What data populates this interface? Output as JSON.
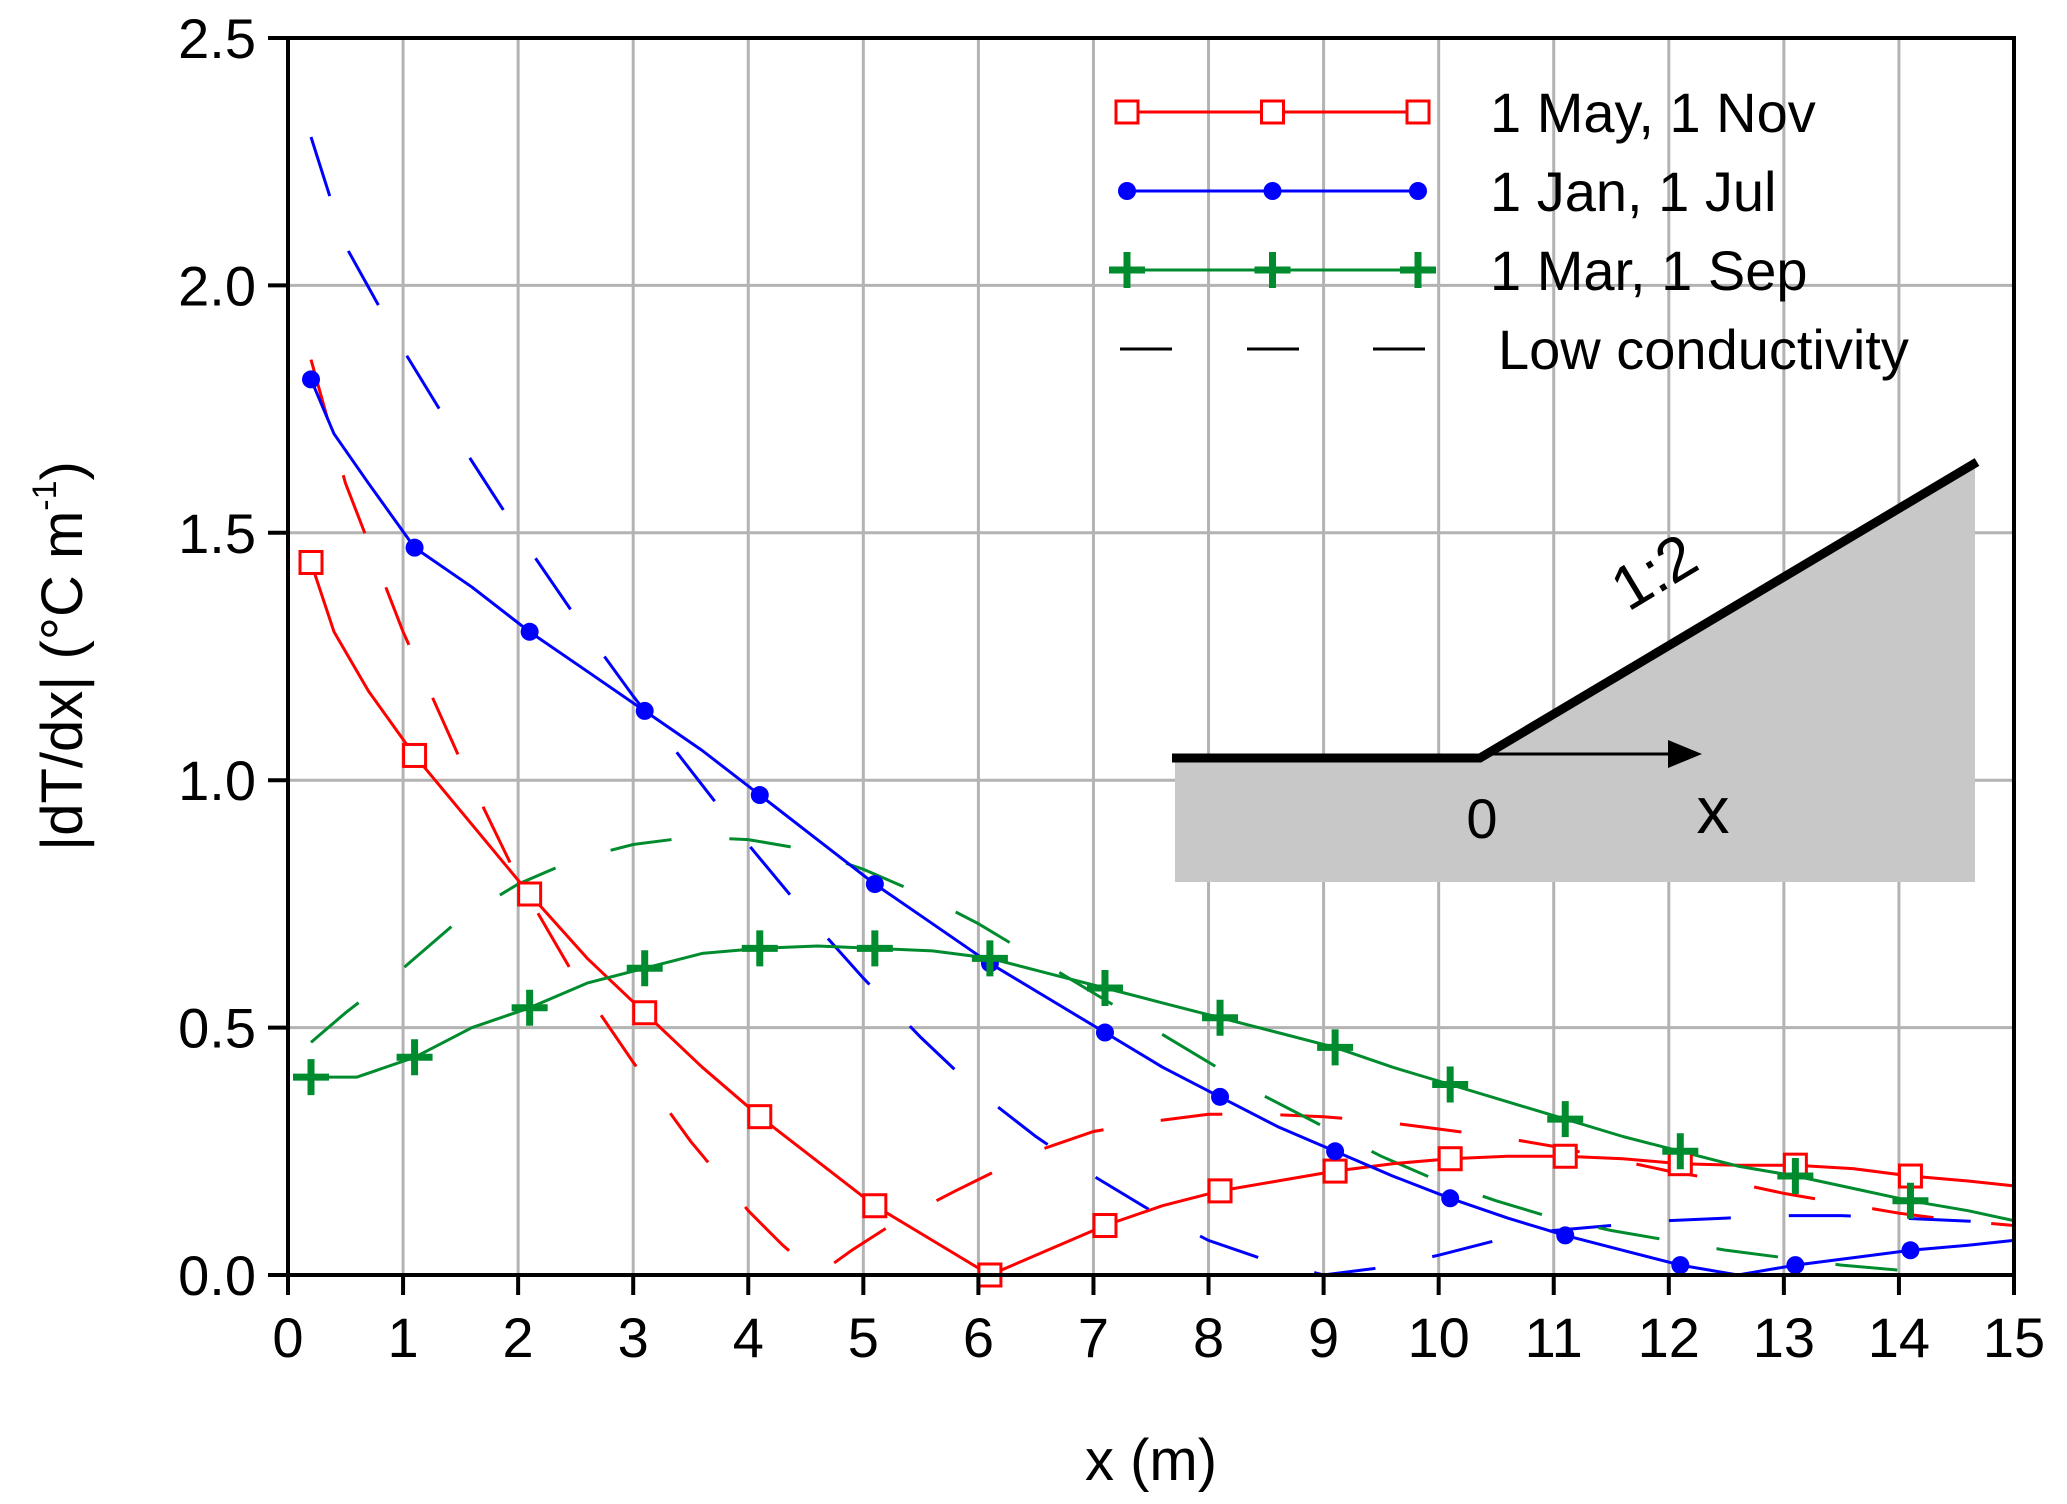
{
  "chart_data": {
    "type": "line",
    "xlabel": "x (m)",
    "ylabel_main": "|dT/dx| (°C m",
    "ylabel_sup": "-1",
    "ylabel_close": ")",
    "xlim": [
      0,
      15
    ],
    "ylim": [
      0,
      2.5
    ],
    "xticks": [
      0,
      1,
      2,
      3,
      4,
      5,
      6,
      7,
      8,
      9,
      10,
      11,
      12,
      13,
      14,
      15
    ],
    "yticks": [
      0,
      0.5,
      1.0,
      1.5,
      2.0,
      2.5
    ],
    "ytick_labels": [
      "0.0",
      "0.5",
      "1.0",
      "1.5",
      "2.0",
      "2.5"
    ],
    "grid": true,
    "legend_position": "top-right",
    "series": [
      {
        "name": "1 May, 1 Nov",
        "color": "#ff0000",
        "marker": "open-square",
        "style": "solid",
        "x": [
          0.2,
          0.4,
          0.7,
          1.1,
          1.6,
          2.1,
          2.6,
          3.1,
          3.6,
          4.1,
          4.6,
          5.1,
          5.6,
          6.1,
          6.6,
          7.1,
          7.6,
          8.1,
          8.6,
          9.1,
          9.6,
          10.1,
          10.6,
          11.1,
          11.6,
          12.1,
          12.6,
          13.1,
          13.6,
          14.1,
          14.6,
          15.0
        ],
        "y": [
          1.44,
          1.3,
          1.18,
          1.05,
          0.91,
          0.77,
          0.64,
          0.53,
          0.42,
          0.32,
          0.23,
          0.14,
          0.07,
          0.0,
          0.05,
          0.1,
          0.14,
          0.17,
          0.19,
          0.21,
          0.225,
          0.235,
          0.24,
          0.24,
          0.235,
          0.225,
          0.222,
          0.222,
          0.215,
          0.2,
          0.19,
          0.18
        ],
        "marker_x": [
          0.2,
          1.1,
          2.1,
          3.1,
          4.1,
          5.1,
          6.1,
          7.1,
          8.1,
          9.1,
          10.1,
          11.1,
          12.1,
          13.1,
          14.1
        ],
        "marker_y": [
          1.44,
          1.05,
          0.77,
          0.53,
          0.32,
          0.14,
          0.0,
          0.1,
          0.17,
          0.21,
          0.235,
          0.24,
          0.225,
          0.222,
          0.2
        ]
      },
      {
        "name": "1 Jan, 1 Jul",
        "color": "#0000ff",
        "marker": "filled-circle",
        "style": "solid",
        "x": [
          0.2,
          0.4,
          0.7,
          1.1,
          1.6,
          2.1,
          2.6,
          3.1,
          3.6,
          4.1,
          4.6,
          5.1,
          5.6,
          6.1,
          6.6,
          7.1,
          7.6,
          8.1,
          8.6,
          9.1,
          9.6,
          10.1,
          10.6,
          11.1,
          11.6,
          12.1,
          12.6,
          13.1,
          13.6,
          14.1,
          14.6,
          15.0
        ],
        "y": [
          1.81,
          1.7,
          1.6,
          1.47,
          1.39,
          1.3,
          1.22,
          1.14,
          1.06,
          0.97,
          0.88,
          0.79,
          0.71,
          0.63,
          0.56,
          0.49,
          0.42,
          0.36,
          0.3,
          0.25,
          0.2,
          0.155,
          0.115,
          0.08,
          0.05,
          0.02,
          0.0,
          0.02,
          0.035,
          0.05,
          0.06,
          0.07
        ],
        "marker_x": [
          0.2,
          1.1,
          2.1,
          3.1,
          4.1,
          5.1,
          6.1,
          7.1,
          8.1,
          9.1,
          10.1,
          11.1,
          12.1,
          13.1,
          14.1
        ],
        "marker_y": [
          1.81,
          1.47,
          1.3,
          1.14,
          0.97,
          0.79,
          0.63,
          0.49,
          0.36,
          0.25,
          0.155,
          0.08,
          0.02,
          0.02,
          0.05
        ]
      },
      {
        "name": "1 Mar, 1 Sep",
        "color": "#008c2e",
        "marker": "plus",
        "style": "solid",
        "x": [
          0.2,
          0.6,
          1.1,
          1.6,
          2.1,
          2.6,
          3.1,
          3.6,
          4.1,
          4.6,
          5.1,
          5.6,
          6.1,
          6.6,
          7.1,
          7.6,
          8.1,
          8.6,
          9.1,
          9.6,
          10.1,
          10.6,
          11.1,
          11.6,
          12.1,
          12.6,
          13.1,
          13.6,
          14.1,
          14.6,
          15.0
        ],
        "y": [
          0.4,
          0.4,
          0.44,
          0.5,
          0.54,
          0.59,
          0.62,
          0.65,
          0.66,
          0.665,
          0.66,
          0.655,
          0.64,
          0.61,
          0.58,
          0.55,
          0.52,
          0.49,
          0.46,
          0.42,
          0.385,
          0.35,
          0.315,
          0.28,
          0.25,
          0.22,
          0.2,
          0.175,
          0.15,
          0.13,
          0.11
        ],
        "marker_x": [
          0.2,
          1.1,
          2.1,
          3.1,
          4.1,
          5.1,
          6.1,
          7.1,
          8.1,
          9.1,
          10.1,
          11.1,
          12.1,
          13.1,
          14.1
        ],
        "marker_y": [
          0.4,
          0.44,
          0.54,
          0.62,
          0.66,
          0.66,
          0.64,
          0.58,
          0.52,
          0.46,
          0.385,
          0.315,
          0.25,
          0.2,
          0.15
        ]
      },
      {
        "name": "Low conductivity",
        "color": "#000000",
        "style": "dashed",
        "legend_only": true
      }
    ],
    "low_conductivity_curves": [
      {
        "color": "#ff0000",
        "x": [
          0.2,
          0.5,
          1.0,
          1.5,
          2.0,
          2.5,
          3.0,
          3.5,
          4.0,
          4.3,
          4.6,
          4.9,
          5.3,
          5.8,
          6.5,
          7.0,
          7.5,
          8.0,
          8.5,
          9.0,
          9.5,
          10.0,
          10.5,
          11.0,
          11.5,
          12.0,
          12.5,
          13.0,
          13.5,
          14.0,
          14.5,
          15.0
        ],
        "y": [
          1.85,
          1.6,
          1.3,
          1.04,
          0.8,
          0.6,
          0.43,
          0.27,
          0.13,
          0.06,
          0.0,
          0.05,
          0.11,
          0.17,
          0.25,
          0.29,
          0.31,
          0.325,
          0.325,
          0.32,
          0.31,
          0.295,
          0.28,
          0.26,
          0.235,
          0.21,
          0.19,
          0.165,
          0.145,
          0.125,
          0.11,
          0.1
        ]
      },
      {
        "color": "#0000ff",
        "x": [
          0.2,
          0.5,
          1.0,
          1.5,
          2.0,
          2.5,
          3.0,
          3.5,
          4.0,
          4.5,
          5.0,
          5.5,
          6.0,
          6.5,
          7.0,
          7.5,
          8.0,
          8.5,
          9.0,
          9.5,
          10.0,
          10.5,
          11.0,
          11.5,
          12.0,
          12.5,
          13.0,
          13.5,
          14.0,
          14.5,
          15.0
        ],
        "y": [
          2.3,
          2.08,
          1.87,
          1.68,
          1.5,
          1.33,
          1.17,
          1.02,
          0.87,
          0.73,
          0.6,
          0.48,
          0.37,
          0.28,
          0.2,
          0.13,
          0.07,
          0.03,
          0.0,
          0.015,
          0.04,
          0.07,
          0.09,
          0.1,
          0.11,
          0.115,
          0.12,
          0.12,
          0.115,
          0.11,
          0.105
        ]
      },
      {
        "color": "#008c2e",
        "x": [
          0.2,
          0.5,
          1.0,
          1.5,
          2.0,
          2.5,
          3.0,
          3.5,
          4.0,
          4.5,
          5.0,
          5.5,
          6.0,
          6.5,
          7.0,
          7.5,
          8.0,
          8.5,
          9.0,
          9.5,
          10.0,
          10.5,
          11.0,
          11.5,
          12.0,
          12.5,
          13.0,
          13.5,
          14.0,
          14.5,
          15.0
        ],
        "y": [
          0.47,
          0.53,
          0.62,
          0.72,
          0.79,
          0.84,
          0.87,
          0.885,
          0.88,
          0.86,
          0.82,
          0.77,
          0.71,
          0.64,
          0.57,
          0.5,
          0.43,
          0.36,
          0.3,
          0.24,
          0.19,
          0.15,
          0.115,
          0.09,
          0.07,
          0.05,
          0.035,
          0.02,
          0.01,
          0.0,
          0.0
        ]
      }
    ],
    "inset": {
      "slope_label": "1:2",
      "origin_label": "0",
      "axis_label": "x"
    }
  }
}
